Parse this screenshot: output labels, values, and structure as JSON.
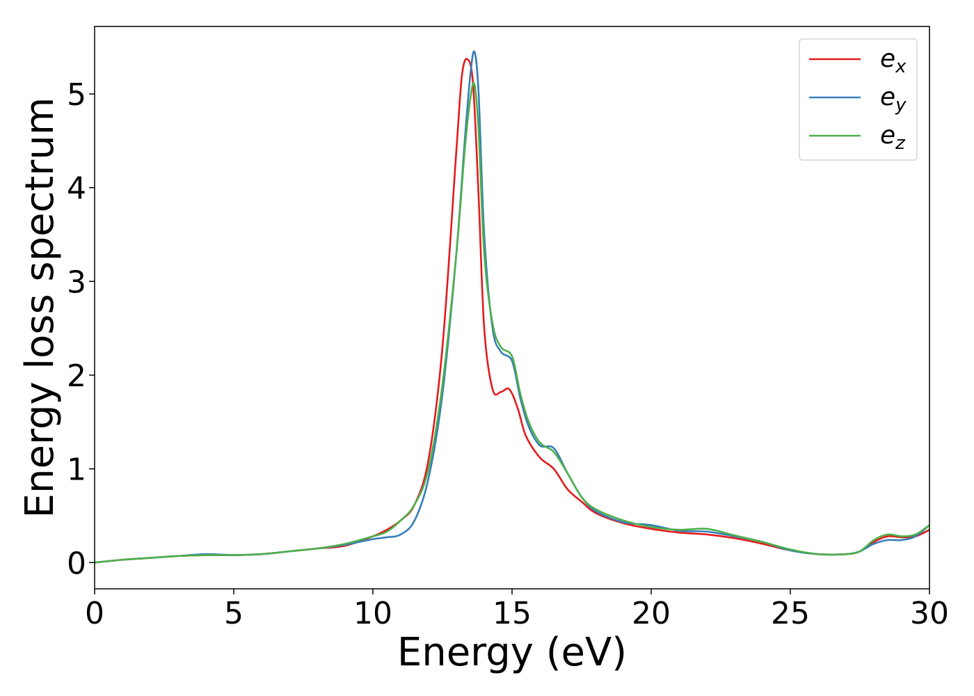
{
  "chart_data": {
    "type": "line",
    "xlabel": "Energy (eV)",
    "ylabel": "Energy loss spectrum",
    "xlim": [
      0,
      30
    ],
    "ylim": [
      -0.28,
      5.72
    ],
    "xticks": [
      0,
      5,
      10,
      15,
      20,
      25,
      30
    ],
    "yticks": [
      0,
      1,
      2,
      3,
      4,
      5
    ],
    "grid": false,
    "legend_position": "top-right",
    "series": [
      {
        "name": "e",
        "sub": "x",
        "color": "#e41a1c",
        "x": [
          0,
          1,
          2,
          3,
          4,
          5,
          6,
          7,
          8,
          9,
          10,
          10.5,
          11,
          11.5,
          12,
          12.5,
          13,
          13.2,
          13.4,
          13.6,
          13.8,
          14,
          14.3,
          14.6,
          14.9,
          15.2,
          15.5,
          16,
          16.5,
          17,
          17.5,
          18,
          19,
          20,
          21,
          22,
          23,
          24,
          25,
          26,
          27,
          27.5,
          28,
          28.5,
          29,
          29.5,
          30
        ],
        "y": [
          0,
          0.03,
          0.05,
          0.07,
          0.08,
          0.08,
          0.09,
          0.12,
          0.15,
          0.18,
          0.28,
          0.35,
          0.45,
          0.62,
          1.1,
          2.3,
          4.4,
          5.2,
          5.37,
          5.1,
          3.9,
          2.5,
          1.85,
          1.82,
          1.85,
          1.65,
          1.35,
          1.12,
          1.0,
          0.78,
          0.65,
          0.53,
          0.42,
          0.36,
          0.32,
          0.3,
          0.26,
          0.2,
          0.13,
          0.09,
          0.09,
          0.12,
          0.22,
          0.28,
          0.27,
          0.28,
          0.35
        ]
      },
      {
        "name": "e",
        "sub": "y",
        "color": "#377eb8",
        "x": [
          0,
          1,
          2,
          3,
          4,
          5,
          6,
          7,
          8,
          9,
          10,
          10.5,
          11,
          11.5,
          12,
          12.5,
          13,
          13.3,
          13.5,
          13.65,
          13.8,
          14,
          14.3,
          14.6,
          15,
          15.3,
          15.6,
          16,
          16.5,
          17,
          17.5,
          18,
          19,
          20,
          21,
          22,
          23,
          24,
          25,
          26,
          27,
          27.5,
          28,
          28.5,
          29,
          29.5,
          30
        ],
        "y": [
          0,
          0.03,
          0.05,
          0.07,
          0.09,
          0.08,
          0.09,
          0.12,
          0.15,
          0.19,
          0.25,
          0.27,
          0.3,
          0.45,
          0.9,
          1.8,
          3.3,
          4.5,
          5.2,
          5.45,
          5.0,
          3.5,
          2.5,
          2.25,
          2.15,
          1.75,
          1.45,
          1.25,
          1.22,
          0.95,
          0.7,
          0.55,
          0.43,
          0.4,
          0.34,
          0.33,
          0.28,
          0.22,
          0.13,
          0.09,
          0.09,
          0.12,
          0.2,
          0.24,
          0.24,
          0.28,
          0.4
        ]
      },
      {
        "name": "e",
        "sub": "z",
        "color": "#4daf4a",
        "x": [
          0,
          1,
          2,
          3,
          4,
          5,
          6,
          7,
          8,
          9,
          10,
          10.5,
          11,
          11.5,
          12,
          12.5,
          13,
          13.3,
          13.5,
          13.65,
          13.8,
          14,
          14.3,
          14.6,
          15,
          15.3,
          15.6,
          16,
          16.5,
          17,
          17.5,
          18,
          19,
          20,
          21,
          22,
          23,
          24,
          25,
          26,
          27,
          27.5,
          28,
          28.5,
          29,
          29.5,
          30
        ],
        "y": [
          0,
          0.03,
          0.05,
          0.07,
          0.08,
          0.08,
          0.09,
          0.12,
          0.15,
          0.2,
          0.28,
          0.33,
          0.45,
          0.62,
          1.0,
          1.9,
          3.3,
          4.4,
          4.95,
          5.1,
          4.6,
          3.3,
          2.55,
          2.3,
          2.2,
          1.8,
          1.5,
          1.28,
          1.18,
          0.95,
          0.7,
          0.57,
          0.45,
          0.38,
          0.35,
          0.36,
          0.29,
          0.22,
          0.14,
          0.09,
          0.09,
          0.12,
          0.24,
          0.3,
          0.28,
          0.3,
          0.4
        ]
      }
    ]
  }
}
